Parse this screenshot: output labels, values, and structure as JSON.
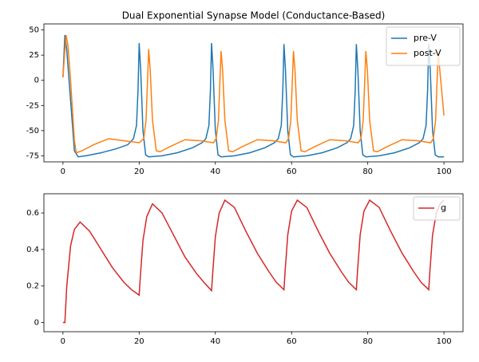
{
  "chart_data": [
    {
      "type": "line",
      "title": "Dual Exponential Synapse Model (Conductance-Based)",
      "xlim": [
        -5,
        105
      ],
      "ylim": [
        -81,
        56
      ],
      "xticks": [
        0,
        20,
        40,
        60,
        80,
        100
      ],
      "yticks": [
        -75,
        -50,
        -25,
        0,
        25,
        50
      ],
      "legend": "upper right",
      "series": [
        {
          "name": "pre-V",
          "color": "#1f77b4",
          "x": [
            0,
            0.5,
            1,
            2,
            3,
            4,
            6,
            10,
            14,
            17,
            18.5,
            19.3,
            19.7,
            20,
            20.4,
            21,
            21.7,
            22.5,
            26,
            30,
            34,
            36.5,
            37.5,
            38.3,
            38.7,
            39,
            39.4,
            40,
            40.7,
            41.5,
            45,
            49,
            53,
            55.5,
            56.5,
            57.3,
            57.7,
            58,
            58.4,
            59,
            59.7,
            60.5,
            64,
            68,
            72,
            74.5,
            75.5,
            76.3,
            76.7,
            77,
            77.4,
            78,
            78.7,
            79.5,
            83,
            87,
            91,
            93.5,
            94.5,
            95.3,
            95.7,
            96,
            96.4,
            97,
            97.7,
            98.5,
            100
          ],
          "values": [
            3,
            45,
            30,
            -20,
            -70,
            -76,
            -75,
            -72,
            -68,
            -64,
            -58,
            -45,
            -10,
            37,
            10,
            -50,
            -74,
            -76,
            -75,
            -72,
            -67,
            -62,
            -58,
            -45,
            -10,
            37,
            10,
            -50,
            -74,
            -76,
            -75,
            -72,
            -67,
            -62,
            -58,
            -45,
            -10,
            36,
            10,
            -50,
            -74,
            -76,
            -75,
            -72,
            -67,
            -62,
            -58,
            -45,
            -10,
            36,
            10,
            -50,
            -74,
            -76,
            -75,
            -72,
            -67,
            -62,
            -58,
            -45,
            -10,
            36,
            10,
            -50,
            -74,
            -76,
            -76
          ]
        },
        {
          "name": "post-V",
          "color": "#ff7f0e",
          "x": [
            0,
            0.5,
            0.8,
            1.3,
            2,
            3,
            3.5,
            5,
            8,
            12,
            16,
            20,
            21.2,
            21.8,
            22.2,
            22.5,
            22.9,
            23.5,
            24.5,
            25.5,
            28,
            32,
            36,
            39.5,
            40.2,
            40.8,
            41.2,
            41.5,
            41.9,
            42.5,
            43.5,
            44.5,
            47,
            51,
            55,
            58.5,
            59.2,
            59.8,
            60.2,
            60.5,
            60.9,
            61.5,
            62.5,
            63.5,
            66,
            70,
            74,
            77.5,
            78.2,
            78.8,
            79.2,
            79.5,
            79.9,
            80.5,
            81.5,
            82.5,
            85,
            89,
            93,
            96.5,
            97.2,
            97.8,
            98.2,
            98.5,
            98.9,
            100
          ],
          "values": [
            3,
            30,
            45,
            35,
            0,
            -60,
            -72,
            -70,
            -64,
            -58,
            -60,
            -62,
            -58,
            -40,
            0,
            31,
            10,
            -40,
            -70,
            -71,
            -66,
            -59,
            -60,
            -62,
            -58,
            -40,
            0,
            29,
            10,
            -40,
            -70,
            -71,
            -66,
            -59,
            -60,
            -62,
            -58,
            -40,
            0,
            29,
            10,
            -40,
            -70,
            -71,
            -66,
            -59,
            -60,
            -62,
            -58,
            -40,
            0,
            29,
            10,
            -40,
            -70,
            -71,
            -66,
            -59,
            -60,
            -62,
            -58,
            -40,
            0,
            29,
            10,
            -35
          ]
        }
      ]
    },
    {
      "type": "line",
      "xlim": [
        -5,
        105
      ],
      "ylim": [
        -0.05,
        0.705
      ],
      "xticks": [
        0,
        20,
        40,
        60,
        80,
        100
      ],
      "yticks": [
        0.0,
        0.2,
        0.4,
        0.6
      ],
      "legend": "upper right",
      "series": [
        {
          "name": "g",
          "color": "#d62728",
          "x": [
            0,
            0.5,
            1,
            2,
            3,
            4.5,
            7,
            10,
            13,
            16,
            18,
            20,
            20.3,
            21,
            22,
            23.5,
            26,
            29,
            32,
            35,
            37,
            39,
            39.3,
            40,
            41,
            42.5,
            45,
            48,
            51,
            54,
            56,
            58,
            58.3,
            59,
            60,
            61.5,
            64,
            67,
            70,
            73,
            75,
            77,
            77.3,
            78,
            79,
            80.5,
            83,
            86,
            89,
            92,
            94,
            96,
            96.3,
            97,
            98,
            99,
            100
          ],
          "values": [
            0,
            0,
            0.2,
            0.42,
            0.51,
            0.55,
            0.5,
            0.4,
            0.3,
            0.22,
            0.18,
            0.15,
            0.25,
            0.45,
            0.58,
            0.65,
            0.6,
            0.48,
            0.36,
            0.27,
            0.22,
            0.175,
            0.27,
            0.47,
            0.6,
            0.67,
            0.63,
            0.5,
            0.38,
            0.28,
            0.22,
            0.18,
            0.28,
            0.48,
            0.61,
            0.67,
            0.63,
            0.5,
            0.38,
            0.28,
            0.22,
            0.18,
            0.28,
            0.48,
            0.61,
            0.67,
            0.63,
            0.5,
            0.38,
            0.28,
            0.22,
            0.18,
            0.28,
            0.48,
            0.6,
            0.65,
            0.67
          ]
        }
      ]
    }
  ]
}
